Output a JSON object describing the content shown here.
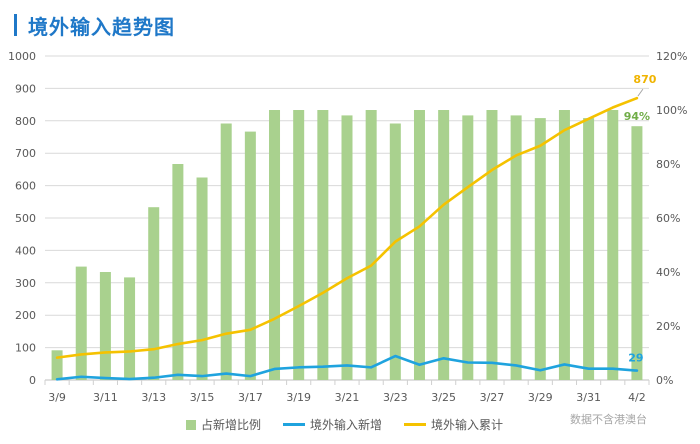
{
  "footnote": "数据不含港澳台",
  "chart_data": {
    "type": "bar",
    "title": "境外输入趋势图",
    "categories": [
      "3/9",
      "3/10",
      "3/11",
      "3/12",
      "3/13",
      "3/14",
      "3/15",
      "3/16",
      "3/17",
      "3/18",
      "3/19",
      "3/20",
      "3/21",
      "3/22",
      "3/23",
      "3/24",
      "3/25",
      "3/26",
      "3/27",
      "3/28",
      "3/29",
      "3/30",
      "3/31",
      "4/1",
      "4/2"
    ],
    "series": [
      {
        "name": "占新增比例",
        "type": "bar",
        "axis": "right",
        "unit": "%",
        "color": "#a9d18e",
        "values": [
          11,
          42,
          40,
          38,
          64,
          80,
          75,
          95,
          92,
          100,
          100,
          100,
          98,
          100,
          95,
          100,
          100,
          98,
          100,
          98,
          97,
          100,
          97,
          100,
          94
        ]
      },
      {
        "name": "境外输入新增",
        "type": "line",
        "axis": "left",
        "color": "#1fa3de",
        "values": [
          2,
          10,
          6,
          3,
          7,
          16,
          12,
          20,
          12,
          34,
          39,
          41,
          45,
          39,
          74,
          47,
          67,
          54,
          53,
          45,
          30,
          48,
          35,
          35,
          29
        ]
      },
      {
        "name": "境外输入累计",
        "type": "line",
        "axis": "left",
        "color": "#f5c200",
        "values": [
          69,
          79,
          85,
          88,
          95,
          111,
          123,
          143,
          155,
          189,
          228,
          269,
          314,
          353,
          427,
          474,
          541,
          595,
          648,
          693,
          723,
          771,
          806,
          841,
          870
        ]
      }
    ],
    "y_left": {
      "range": [
        0,
        1000
      ],
      "tick_labels": [
        "0",
        "100",
        "200",
        "300",
        "400",
        "500",
        "600",
        "700",
        "800",
        "900",
        "1000"
      ]
    },
    "y_right": {
      "range": [
        0,
        120
      ],
      "tick_labels": [
        "0%",
        "20%",
        "40%",
        "60%",
        "80%",
        "100%",
        "120%"
      ]
    },
    "data_labels": [
      {
        "series": "境外输入累计",
        "category": "4/2",
        "text": "870",
        "color": "#f0b400"
      },
      {
        "series": "占新增比例",
        "category": "4/2",
        "text": "94%",
        "color": "#70ad47"
      },
      {
        "series": "境外输入新增",
        "category": "4/2",
        "text": "29",
        "color": "#1fa3de"
      }
    ],
    "grid": true,
    "legend": "bottom"
  }
}
